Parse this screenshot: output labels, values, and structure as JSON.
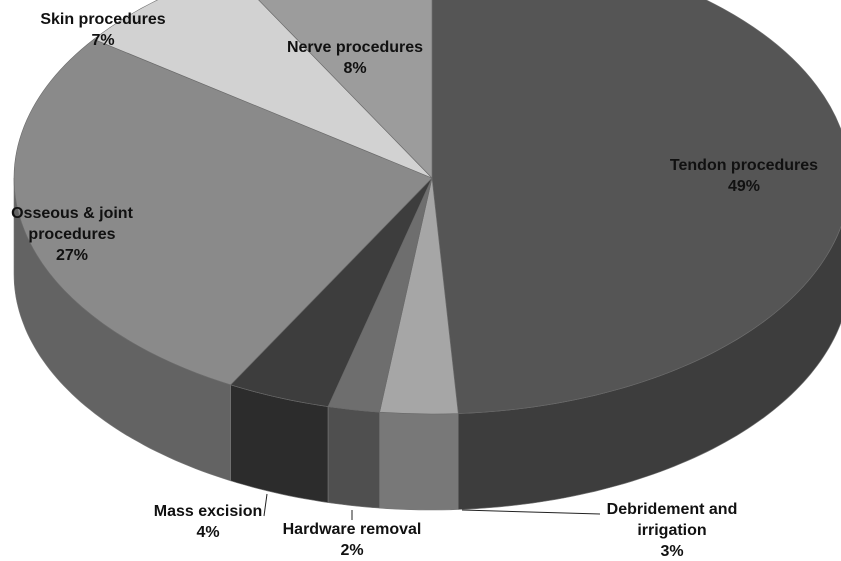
{
  "chart_data": {
    "type": "pie",
    "style": "3d",
    "title": "",
    "start_angle_deg": 0,
    "direction": "clockwise",
    "legend": "none",
    "slices": [
      {
        "label": "Tendon procedures",
        "line2": "",
        "value": 49,
        "pct_label": "49%",
        "color": "#555555"
      },
      {
        "label": "Debridement and",
        "line2": "irrigation",
        "value": 3,
        "pct_label": "3%",
        "color": "#a6a6a6"
      },
      {
        "label": "Hardware removal",
        "line2": "",
        "value": 2,
        "pct_label": "2%",
        "color": "#6e6e6e"
      },
      {
        "label": "Mass excision",
        "line2": "",
        "value": 4,
        "pct_label": "4%",
        "color": "#3d3d3d"
      },
      {
        "label": "Osseous & joint",
        "line2": "procedures",
        "value": 27,
        "pct_label": "27%",
        "color": "#8a8a8a"
      },
      {
        "label": "Skin procedures",
        "line2": "",
        "value": 7,
        "pct_label": "7%",
        "color": "#d2d2d2"
      },
      {
        "label": "Nerve procedures",
        "line2": "",
        "value": 8,
        "pct_label": "8%",
        "color": "#9c9c9c"
      }
    ]
  }
}
